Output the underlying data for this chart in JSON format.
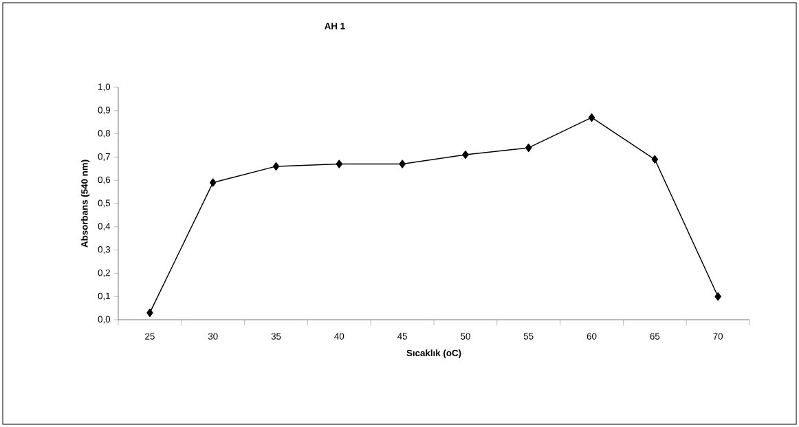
{
  "chart_data": {
    "type": "line",
    "title": "AH 1",
    "xlabel": "Sıcaklık (oC)",
    "ylabel": "Absorbans (540 nm)",
    "categories": [
      "25",
      "30",
      "35",
      "40",
      "45",
      "50",
      "55",
      "60",
      "65",
      "70"
    ],
    "series": [
      {
        "color": "#000000",
        "values": [
          0.03,
          0.59,
          0.66,
          0.67,
          0.67,
          0.71,
          0.74,
          0.87,
          0.69,
          0.1
        ]
      }
    ],
    "ylim": [
      0,
      1
    ],
    "yticks": [
      {
        "value": 0,
        "label": "0,0"
      },
      {
        "value": 0.1,
        "label": "0,1"
      },
      {
        "value": 0.2,
        "label": "0,2"
      },
      {
        "value": 0.3,
        "label": "0,3"
      },
      {
        "value": 0.4,
        "label": "0,4"
      },
      {
        "value": 0.5,
        "label": "0,5"
      },
      {
        "value": 0.6,
        "label": "0,6"
      },
      {
        "value": 0.7,
        "label": "0,7"
      },
      {
        "value": 0.8,
        "label": "0,8"
      },
      {
        "value": 0.9,
        "label": "0,9"
      },
      {
        "value": 1,
        "label": "1,0"
      }
    ],
    "grid": false,
    "marker": "diamond",
    "line_style": "solid"
  }
}
